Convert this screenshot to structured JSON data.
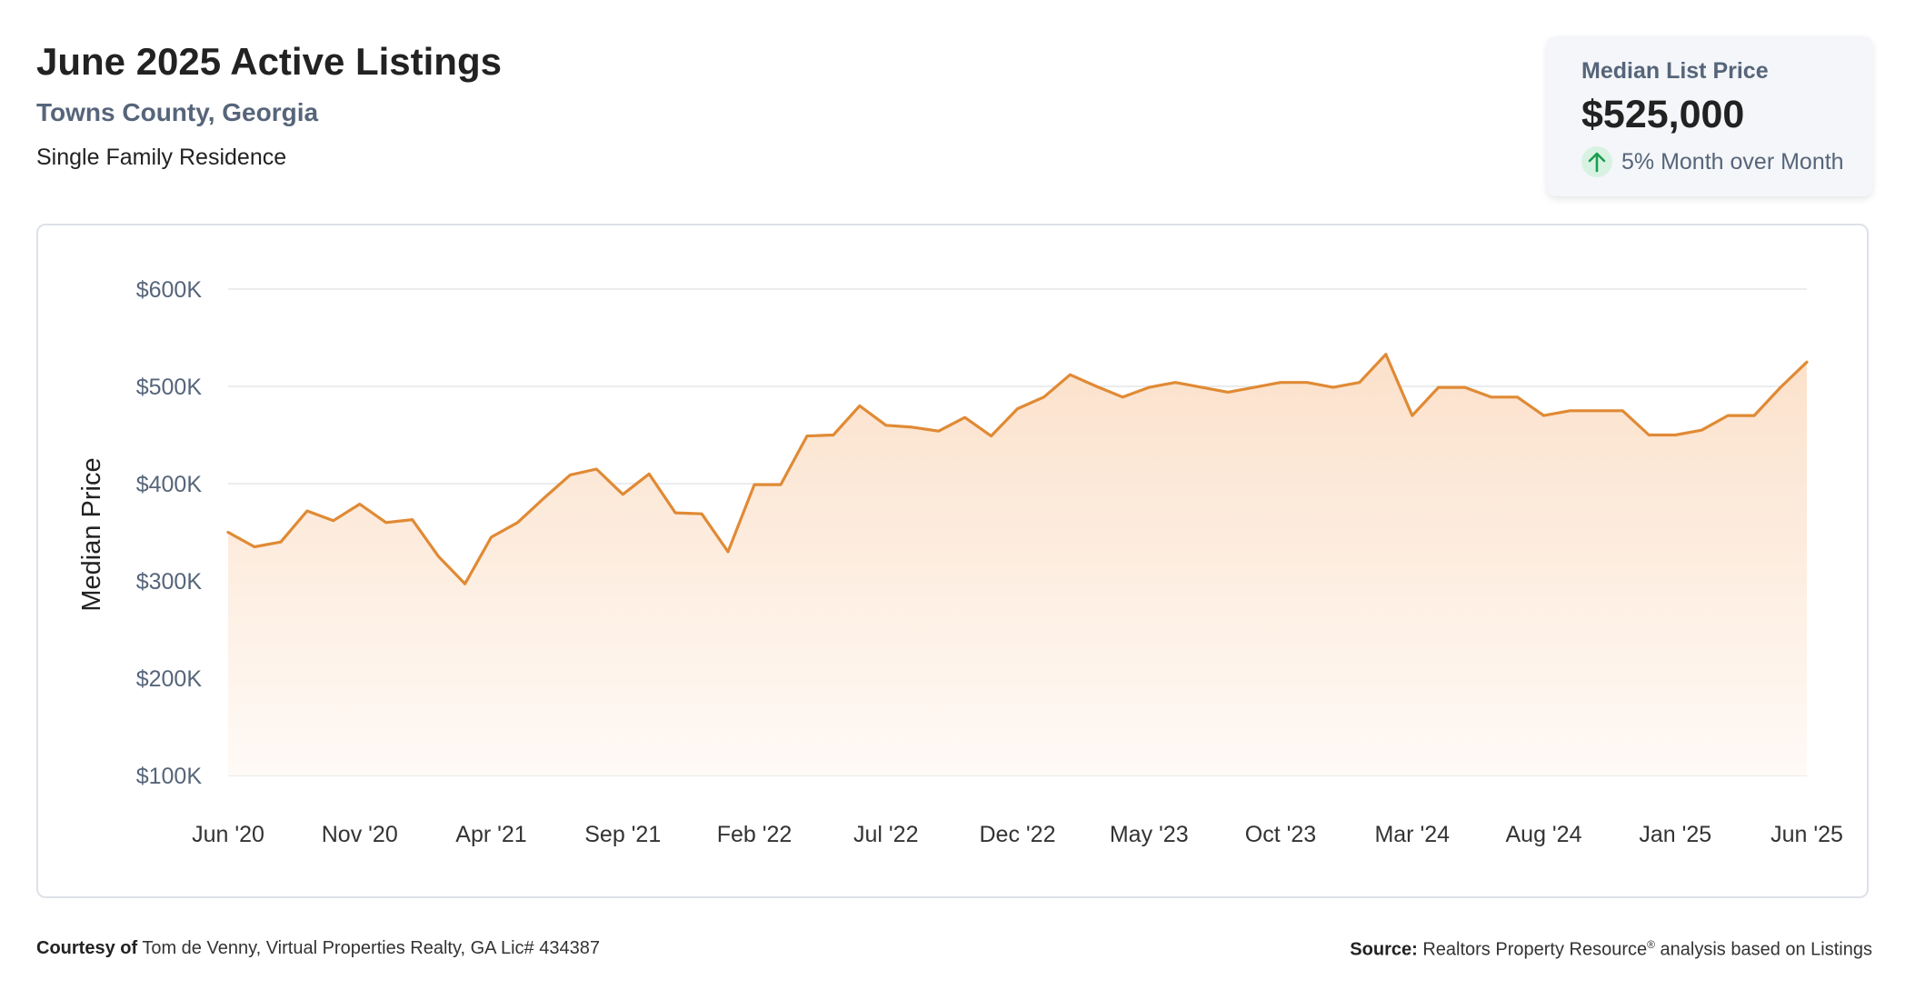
{
  "header": {
    "title": "June 2025 Active Listings",
    "location": "Towns County, Georgia",
    "property_type": "Single Family Residence"
  },
  "summary_card": {
    "label": "Median List Price",
    "value": "$525,000",
    "change_text": "5% Month over Month",
    "change_icon": "arrow-up-icon",
    "change_color": "#1a9e4f",
    "change_bg": "#d8f2e2"
  },
  "colors": {
    "line": "#e08a35",
    "fill_top": "#fbe1cb",
    "fill_bottom": "#fffaf6",
    "grid": "#e3e5e8"
  },
  "chart_data": {
    "type": "area",
    "title": "",
    "xlabel": "",
    "ylabel": "Median Price",
    "ylim": [
      100000,
      600000
    ],
    "y_ticks": [
      600000,
      500000,
      400000,
      300000,
      200000,
      100000
    ],
    "y_tick_labels": [
      "$600K",
      "$500K",
      "$400K",
      "$300K",
      "$200K",
      "$100K"
    ],
    "x_tick_labels": [
      "Jun '20",
      "Nov '20",
      "Apr '21",
      "Sep '21",
      "Feb '22",
      "Jul '22",
      "Dec '22",
      "May '23",
      "Oct '23",
      "Mar '24",
      "Aug '24",
      "Jan '25",
      "Jun '25"
    ],
    "x_tick_step": 5,
    "grid": true,
    "legend": false,
    "series": [
      {
        "values": [
          350000,
          335000,
          340000,
          372000,
          362000,
          379000,
          360000,
          363000,
          325000,
          297000,
          345000,
          360000,
          385000,
          409000,
          415000,
          389000,
          410000,
          370000,
          369000,
          330000,
          399000,
          399000,
          449000,
          450000,
          480000,
          460000,
          458000,
          454000,
          468000,
          449000,
          477000,
          489000,
          512000,
          500000,
          489000,
          499000,
          504000,
          499000,
          494000,
          499000,
          504000,
          504000,
          499000,
          504000,
          533000,
          470000,
          499000,
          499000,
          489000,
          489000,
          470000,
          475000,
          475000,
          475000,
          450000,
          450000,
          455000,
          470000,
          470000,
          499000,
          525000
        ]
      }
    ]
  },
  "footer": {
    "courtesy_label": "Courtesy of",
    "courtesy_text": "Tom de Venny, Virtual Properties Realty, GA Lic# 434387",
    "source_label": "Source:",
    "source_text_1": "Realtors Property Resource",
    "source_reg": "®",
    "source_text_2": " analysis based on Listings"
  }
}
